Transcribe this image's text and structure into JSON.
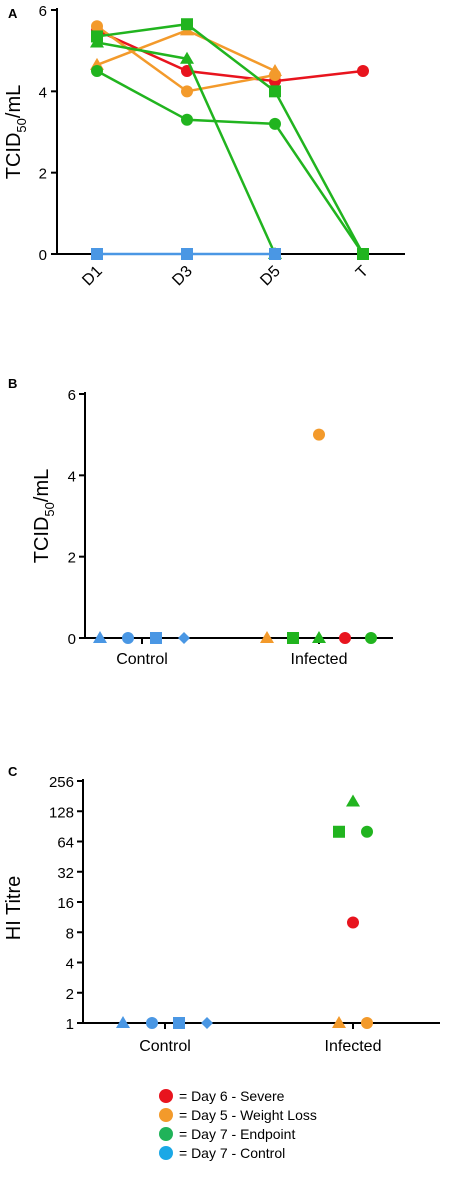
{
  "colors": {
    "severe": "#e8141e",
    "weight_loss": "#f39a2b",
    "endpoint": "#21b41f",
    "control": "#4a97e4",
    "legend_endpoint": "#20b359",
    "legend_control": "#1aa8e6",
    "axis": "#000000"
  },
  "chart_data": [
    {
      "panel": "A",
      "type": "line",
      "ylabel": "TCID50/mL",
      "ylabel_main": "TCID",
      "ylabel_sub": "50",
      "ylabel_unit": "/mL",
      "categories": [
        "D1",
        "D3",
        "D5",
        "T"
      ],
      "ylim": [
        0,
        6
      ],
      "yticks": [
        "0",
        "2",
        "4",
        "6"
      ],
      "series": [
        {
          "group": "severe",
          "marker": "circle",
          "values": [
            5.5,
            4.5,
            4.25,
            4.5
          ]
        },
        {
          "group": "weight_loss",
          "marker": "circle",
          "values": [
            5.6,
            4.0,
            4.4,
            null
          ]
        },
        {
          "group": "weight_loss",
          "marker": "triangle",
          "values": [
            4.65,
            5.5,
            4.5,
            null
          ]
        },
        {
          "group": "endpoint",
          "marker": "square",
          "values": [
            5.35,
            5.65,
            4.0,
            0
          ]
        },
        {
          "group": "endpoint",
          "marker": "triangle",
          "values": [
            5.2,
            4.8,
            0,
            null
          ]
        },
        {
          "group": "endpoint",
          "marker": "circle",
          "values": [
            4.5,
            3.3,
            3.2,
            0
          ]
        },
        {
          "group": "control",
          "marker": "square",
          "values": [
            0,
            0,
            0,
            null
          ]
        }
      ]
    },
    {
      "panel": "B",
      "type": "scatter",
      "ylabel": "TCID50/mL",
      "ylabel_main": "TCID",
      "ylabel_sub": "50",
      "ylabel_unit": "/mL",
      "categories": [
        "Control",
        "Infected"
      ],
      "ylim": [
        0,
        6
      ],
      "yticks": [
        "0",
        "2",
        "4",
        "6"
      ],
      "points": [
        {
          "category": "Control",
          "group": "control",
          "marker": "triangle",
          "value": 0
        },
        {
          "category": "Control",
          "group": "control",
          "marker": "circle",
          "value": 0
        },
        {
          "category": "Control",
          "group": "control",
          "marker": "square",
          "value": 0
        },
        {
          "category": "Control",
          "group": "control",
          "marker": "diamond",
          "value": 0
        },
        {
          "category": "Infected",
          "group": "weight_loss",
          "marker": "triangle",
          "value": 0
        },
        {
          "category": "Infected",
          "group": "endpoint",
          "marker": "square",
          "value": 0
        },
        {
          "category": "Infected",
          "group": "endpoint",
          "marker": "triangle",
          "value": 0
        },
        {
          "category": "Infected",
          "group": "severe",
          "marker": "circle",
          "value": 0
        },
        {
          "category": "Infected",
          "group": "endpoint",
          "marker": "circle",
          "value": 0
        },
        {
          "category": "Infected",
          "group": "weight_loss",
          "marker": "circle",
          "value": 5
        }
      ]
    },
    {
      "panel": "C",
      "type": "scatter",
      "ylabel": "HI Titre",
      "yscale": "log2",
      "categories": [
        "Control",
        "Infected"
      ],
      "ylim": [
        1,
        256
      ],
      "yticks": [
        "1",
        "2",
        "4",
        "8",
        "16",
        "32",
        "64",
        "128",
        "256"
      ],
      "points": [
        {
          "category": "Control",
          "group": "control",
          "marker": "triangle",
          "value": 1
        },
        {
          "category": "Control",
          "group": "control",
          "marker": "circle",
          "value": 1
        },
        {
          "category": "Control",
          "group": "control",
          "marker": "square",
          "value": 1
        },
        {
          "category": "Control",
          "group": "control",
          "marker": "diamond",
          "value": 1
        },
        {
          "category": "Infected",
          "group": "weight_loss",
          "marker": "triangle",
          "value": 1
        },
        {
          "category": "Infected",
          "group": "weight_loss",
          "marker": "circle",
          "value": 1
        },
        {
          "category": "Infected",
          "group": "severe",
          "marker": "circle",
          "value": 10
        },
        {
          "category": "Infected",
          "group": "endpoint",
          "marker": "square",
          "value": 80
        },
        {
          "category": "Infected",
          "group": "endpoint",
          "marker": "circle",
          "value": 80
        },
        {
          "category": "Infected",
          "group": "endpoint",
          "marker": "triangle",
          "value": 160
        }
      ]
    }
  ],
  "legend": [
    {
      "color_key": "severe",
      "label": "= Day 6 - Severe"
    },
    {
      "color_key": "weight_loss",
      "label": "= Day 5 - Weight Loss"
    },
    {
      "color_key": "legend_endpoint",
      "label": "= Day 7 - Endpoint"
    },
    {
      "color_key": "legend_control",
      "label": "= Day 7 - Control"
    }
  ]
}
